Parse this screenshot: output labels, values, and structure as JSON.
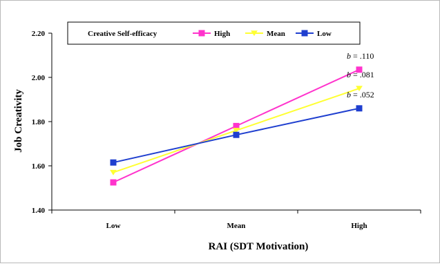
{
  "chart_data": {
    "type": "line",
    "categories": [
      "Low",
      "Mean",
      "High"
    ],
    "series": [
      {
        "name": "High",
        "values": [
          1.525,
          1.78,
          2.035
        ],
        "color": "#ff33cc",
        "marker": "square",
        "slope": ".110"
      },
      {
        "name": "Mean",
        "values": [
          1.57,
          1.76,
          1.95
        ],
        "color": "#ffff33",
        "marker": "triangle",
        "slope": ".081"
      },
      {
        "name": "Low",
        "values": [
          1.615,
          1.74,
          1.86
        ],
        "color": "#1f3fcf",
        "marker": "square",
        "slope": ".052"
      }
    ],
    "xlabel": "RAI (SDT Motivation)",
    "ylabel": "Job Creativity",
    "ylim": [
      1.4,
      2.2
    ],
    "yticks": [
      "1.40",
      "1.60",
      "1.80",
      "2.00",
      "2.20"
    ],
    "legend": {
      "title": "Creative Self-efficacy",
      "placement": "top"
    },
    "slope_prefix": "b",
    "grid": false
  }
}
